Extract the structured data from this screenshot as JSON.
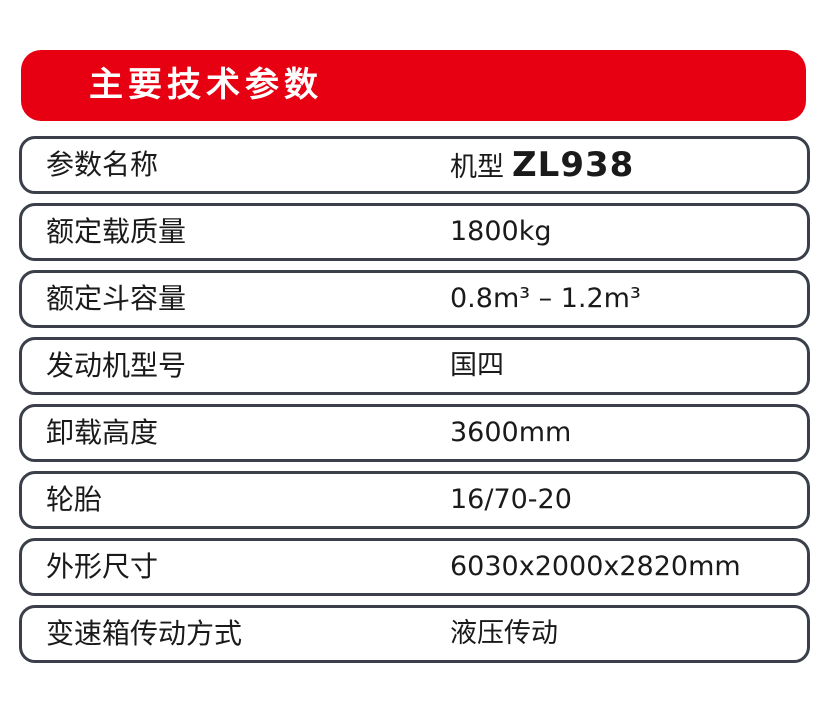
{
  "title": "主要技术参数",
  "colors": {
    "header_bg": "#e60012",
    "border": "#3b3f4a"
  },
  "header_row": {
    "label": "参数名称",
    "value_prefix": "机型",
    "model": "ZL938"
  },
  "rows": [
    {
      "label": "额定载质量",
      "value": "1800kg"
    },
    {
      "label": "额定斗容量",
      "value": "0.8m³ – 1.2m³"
    },
    {
      "label": "发动机型号",
      "value": "国四"
    },
    {
      "label": "卸载高度",
      "value": "3600mm"
    },
    {
      "label": "轮胎",
      "value": "16/70-20"
    },
    {
      "label": "外形尺寸",
      "value": "6030x2000x2820mm"
    },
    {
      "label": "变速箱传动方式",
      "value": "液压传动"
    }
  ]
}
